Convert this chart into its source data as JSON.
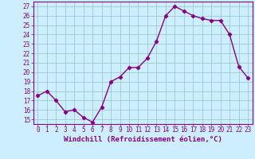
{
  "x": [
    0,
    1,
    2,
    3,
    4,
    5,
    6,
    7,
    8,
    9,
    10,
    11,
    12,
    13,
    14,
    15,
    16,
    17,
    18,
    19,
    20,
    21,
    22,
    23
  ],
  "y": [
    17.5,
    18.0,
    17.0,
    15.8,
    16.0,
    15.2,
    14.7,
    16.3,
    19.0,
    19.5,
    20.5,
    20.5,
    21.5,
    23.3,
    26.0,
    27.0,
    26.5,
    26.0,
    25.7,
    25.5,
    25.5,
    24.0,
    20.6,
    19.4
  ],
  "line_color": "#880088",
  "marker": "D",
  "marker_size": 2.2,
  "bg_color": "#cceeff",
  "grid_color": "#99cccc",
  "xlabel": "Windchill (Refroidissement éolien,°C)",
  "ylim": [
    14.5,
    27.5
  ],
  "yticks": [
    15,
    16,
    17,
    18,
    19,
    20,
    21,
    22,
    23,
    24,
    25,
    26,
    27
  ],
  "xticks": [
    0,
    1,
    2,
    3,
    4,
    5,
    6,
    7,
    8,
    9,
    10,
    11,
    12,
    13,
    14,
    15,
    16,
    17,
    18,
    19,
    20,
    21,
    22,
    23
  ],
  "xlim": [
    -0.5,
    23.5
  ],
  "tick_color": "#880088",
  "label_color": "#880088",
  "axis_color": "#880088",
  "font_size_ticks": 5.5,
  "font_size_label": 6.5,
  "linewidth": 1.0
}
